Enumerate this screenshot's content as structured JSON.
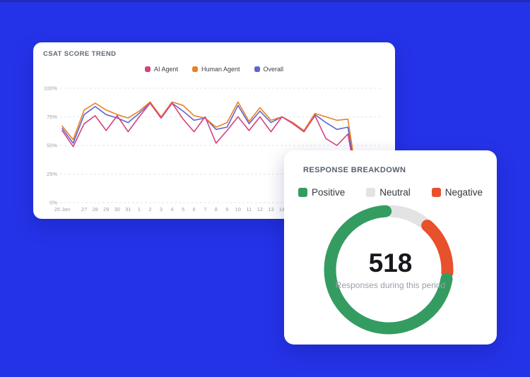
{
  "page": {
    "background_color": "#2433e8",
    "top_strip_color": "#1f2ab5"
  },
  "csat_card": {
    "title": "CSAT SCORE TREND",
    "legend": [
      {
        "label": "AI Agent",
        "color": "#d6417f"
      },
      {
        "label": "Human Agent",
        "color": "#ea8222"
      },
      {
        "label": "Overall",
        "color": "#6065ce"
      }
    ]
  },
  "response_card": {
    "title": "RESPONSE BREAKDOWN",
    "legend": [
      {
        "label": "Positive",
        "color": "#359c61"
      },
      {
        "label": "Neutral",
        "color": "#e3e3e3"
      },
      {
        "label": "Negative",
        "color": "#e7512b"
      }
    ],
    "total": "518",
    "subtitle": "Responses during this period"
  },
  "chart_data": [
    {
      "type": "line",
      "title": "CSAT SCORE TREND",
      "x_labels": [
        "25 Jan",
        "",
        "27",
        "28",
        "29",
        "30",
        "31",
        "1",
        "2",
        "3",
        "4",
        "5",
        "6",
        "7",
        "8",
        "9",
        "10",
        "11",
        "12",
        "13",
        "14",
        "",
        "",
        "",
        "",
        "",
        "",
        ""
      ],
      "ylim": [
        0,
        100
      ],
      "yticks": [
        {
          "label": "100%",
          "value": 100
        },
        {
          "label": "75%",
          "value": 75
        },
        {
          "label": "50%",
          "value": 50
        },
        {
          "label": "25%",
          "value": 25
        },
        {
          "label": "0%",
          "value": 0
        }
      ],
      "grid": "horizontal-dashed",
      "legend_position": "top-center",
      "series": [
        {
          "name": "Overall",
          "color": "#6065ce",
          "values": [
            65,
            52,
            77,
            84,
            77,
            74,
            70,
            78,
            87,
            74,
            87,
            80,
            72,
            74,
            64,
            66,
            85,
            69,
            80,
            70,
            75,
            69,
            62,
            77,
            70,
            64,
            66,
            9
          ]
        },
        {
          "name": "Human Agent",
          "color": "#ea8222",
          "values": [
            67,
            55,
            81,
            87,
            81,
            77,
            74,
            80,
            88,
            75,
            88,
            85,
            76,
            74,
            66,
            70,
            88,
            71,
            83,
            72,
            75,
            70,
            63,
            78,
            75,
            72,
            73,
            10
          ]
        },
        {
          "name": "AI Agent",
          "color": "#d6417f",
          "values": [
            63,
            49,
            69,
            76,
            63,
            76,
            62,
            75,
            87,
            74,
            87,
            73,
            62,
            75,
            52,
            63,
            75,
            63,
            75,
            62,
            75,
            69,
            62,
            76,
            56,
            50,
            60,
            8
          ]
        }
      ]
    },
    {
      "type": "pie",
      "subtype": "donut",
      "title": "RESPONSE BREAKDOWN",
      "center_total": 518,
      "center_subtitle": "Responses during this period",
      "segments": [
        {
          "label": "Neutral",
          "value": 55,
          "color": "#e3e3e3"
        },
        {
          "label": "Negative",
          "value": 83,
          "color": "#e7512b"
        },
        {
          "label": "Positive",
          "value": 380,
          "color": "#359c61"
        }
      ],
      "note_values_estimated_from_arc_angles": true,
      "legend_position": "top-center"
    }
  ]
}
